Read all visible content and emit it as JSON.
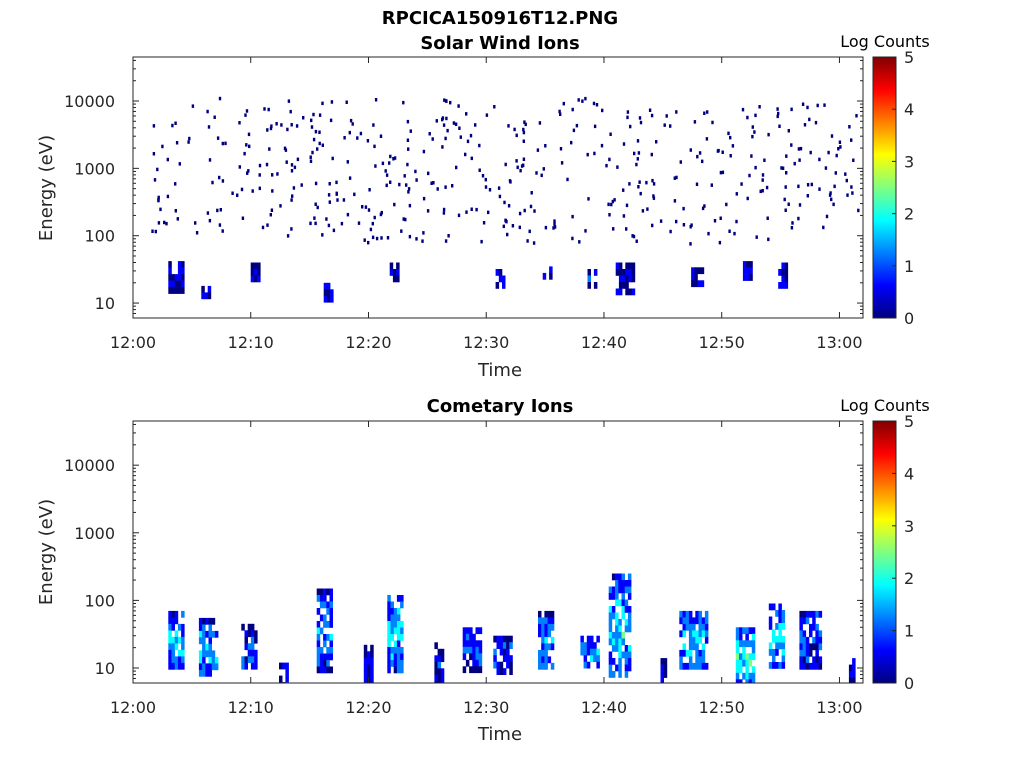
{
  "figure": {
    "title": "RPCICA150916T12.PNG"
  },
  "chart_data": [
    {
      "type": "heatmap",
      "title": "Solar Wind Ions",
      "xlabel": "Time",
      "ylabel": "Energy (eV)",
      "y_scale": "log",
      "ylim": [
        6,
        45000
      ],
      "xlim_minutes": [
        0,
        62
      ],
      "x_ticks": [
        {
          "minute": 0,
          "label": "12:00"
        },
        {
          "minute": 10,
          "label": "12:10"
        },
        {
          "minute": 20,
          "label": "12:20"
        },
        {
          "minute": 30,
          "label": "12:30"
        },
        {
          "minute": 40,
          "label": "12:40"
        },
        {
          "minute": 50,
          "label": "12:50"
        },
        {
          "minute": 60,
          "label": "13:00"
        }
      ],
      "y_ticks": [
        {
          "value": 10,
          "label": "10"
        },
        {
          "value": 100,
          "label": "100"
        },
        {
          "value": 1000,
          "label": "1000"
        },
        {
          "value": 10000,
          "label": "10000"
        }
      ],
      "colorbar": {
        "label": "Log Counts",
        "min": 0,
        "max": 5,
        "ticks": [
          "0",
          "1",
          "2",
          "3",
          "4",
          "5"
        ]
      },
      "colormap": [
        "#00007f",
        "#0000ff",
        "#0080ff",
        "#00ffff",
        "#80ff80",
        "#ffff00",
        "#ff8000",
        "#ff0000",
        "#7f0000"
      ],
      "clusters": [
        {
          "t": [
            3.0,
            4.2
          ],
          "e": [
            15,
            42
          ],
          "level": 0.4
        },
        {
          "t": [
            5.8,
            6.4
          ],
          "e": [
            13,
            18
          ],
          "level": 0.4
        },
        {
          "t": [
            10.0,
            10.8
          ],
          "e": [
            22,
            40
          ],
          "level": 0.4
        },
        {
          "t": [
            16.2,
            16.8
          ],
          "e": [
            12,
            20
          ],
          "level": 0.3
        },
        {
          "t": [
            21.8,
            22.5
          ],
          "e": [
            22,
            40
          ],
          "level": 0.4
        },
        {
          "t": [
            30.8,
            31.6
          ],
          "e": [
            20,
            32
          ],
          "level": 0.3
        },
        {
          "t": [
            34.8,
            35.6
          ],
          "e": [
            20,
            35
          ],
          "level": 0.4
        },
        {
          "t": [
            38.6,
            39.4
          ],
          "e": [
            20,
            32
          ],
          "level": 0.4
        },
        {
          "t": [
            41.0,
            42.5
          ],
          "e": [
            16,
            40
          ],
          "level": 0.4
        },
        {
          "t": [
            47.4,
            48.4
          ],
          "e": [
            20,
            34
          ],
          "level": 0.4
        },
        {
          "t": [
            51.8,
            52.6
          ],
          "e": [
            22,
            42
          ],
          "level": 0.5
        },
        {
          "t": [
            54.8,
            55.6
          ],
          "e": [
            20,
            40
          ],
          "level": 0.4
        }
      ],
      "scatter_range": {
        "t": [
          1.5,
          61.5
        ],
        "e": [
          80,
          12000
        ],
        "count": 500,
        "level": 0.3
      }
    },
    {
      "type": "heatmap",
      "title": "Cometary Ions",
      "xlabel": "Time",
      "ylabel": "Energy (eV)",
      "y_scale": "log",
      "ylim": [
        6,
        45000
      ],
      "xlim_minutes": [
        0,
        62
      ],
      "x_ticks": [
        {
          "minute": 0,
          "label": "12:00"
        },
        {
          "minute": 10,
          "label": "12:10"
        },
        {
          "minute": 20,
          "label": "12:20"
        },
        {
          "minute": 30,
          "label": "12:30"
        },
        {
          "minute": 40,
          "label": "12:40"
        },
        {
          "minute": 50,
          "label": "12:50"
        },
        {
          "minute": 60,
          "label": "13:00"
        }
      ],
      "y_ticks": [
        {
          "value": 10,
          "label": "10"
        },
        {
          "value": 100,
          "label": "100"
        },
        {
          "value": 1000,
          "label": "1000"
        },
        {
          "value": 10000,
          "label": "10000"
        }
      ],
      "colorbar": {
        "label": "Log Counts",
        "min": 0,
        "max": 5,
        "ticks": [
          "0",
          "1",
          "2",
          "3",
          "4",
          "5"
        ]
      },
      "colormap": [
        "#00007f",
        "#0000ff",
        "#0080ff",
        "#00ffff",
        "#80ff80",
        "#ffff00",
        "#ff8000",
        "#ff0000",
        "#7f0000"
      ],
      "clusters": [
        {
          "t": [
            3.0,
            4.2
          ],
          "e": [
            10,
            70
          ],
          "level": 1.6
        },
        {
          "t": [
            5.6,
            7.0
          ],
          "e": [
            8,
            55
          ],
          "level": 1.5
        },
        {
          "t": [
            9.2,
            10.4
          ],
          "e": [
            10,
            45
          ],
          "level": 0.8
        },
        {
          "t": [
            12.4,
            13.0
          ],
          "e": [
            6,
            12
          ],
          "level": 0.5
        },
        {
          "t": [
            15.6,
            16.8
          ],
          "e": [
            10,
            150
          ],
          "level": 1.4
        },
        {
          "t": [
            19.6,
            20.2
          ],
          "e": [
            6,
            22
          ],
          "level": 0.6
        },
        {
          "t": [
            21.6,
            22.8
          ],
          "e": [
            10,
            120
          ],
          "level": 1.7
        },
        {
          "t": [
            25.6,
            26.2
          ],
          "e": [
            6,
            24
          ],
          "level": 0.6
        },
        {
          "t": [
            28.0,
            29.4
          ],
          "e": [
            10,
            40
          ],
          "level": 0.8
        },
        {
          "t": [
            30.6,
            32.0
          ],
          "e": [
            8,
            30
          ],
          "level": 0.8
        },
        {
          "t": [
            34.4,
            35.6
          ],
          "e": [
            10,
            70
          ],
          "level": 1.3
        },
        {
          "t": [
            38.0,
            39.4
          ],
          "e": [
            10,
            30
          ],
          "level": 1.4
        },
        {
          "t": [
            40.4,
            42.2
          ],
          "e": [
            8,
            250
          ],
          "level": 1.8
        },
        {
          "t": [
            44.8,
            45.2
          ],
          "e": [
            6,
            14
          ],
          "level": 0.5
        },
        {
          "t": [
            46.4,
            48.6
          ],
          "e": [
            10,
            70
          ],
          "level": 1.6
        },
        {
          "t": [
            51.2,
            52.6
          ],
          "e": [
            6,
            40
          ],
          "level": 2.0
        },
        {
          "t": [
            54.0,
            55.2
          ],
          "e": [
            12,
            90
          ],
          "level": 1.7
        },
        {
          "t": [
            56.6,
            58.4
          ],
          "e": [
            10,
            70
          ],
          "level": 0.9
        },
        {
          "t": [
            60.8,
            61.2
          ],
          "e": [
            6,
            14
          ],
          "level": 0.5
        }
      ]
    }
  ]
}
